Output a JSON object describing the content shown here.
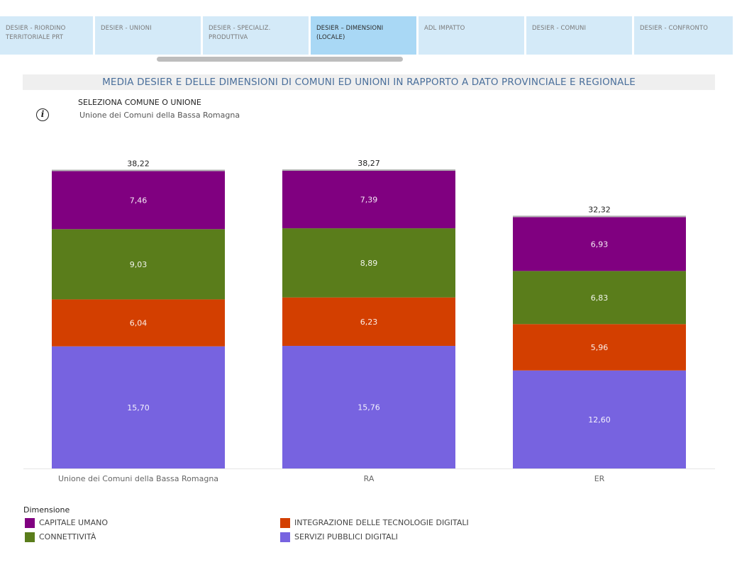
{
  "tabs": [
    {
      "label": "DESIER - RIORDINO TERRITORIALE PRT",
      "active": false
    },
    {
      "label": "DESIER - UNIONI",
      "active": false
    },
    {
      "label": "DESIER - SPECIALIZ. PRODUTTIVA",
      "active": false
    },
    {
      "label": "DESIER – DIMENSIONI (LOCALE)",
      "active": true
    },
    {
      "label": "ADL IMPATTO",
      "active": false
    },
    {
      "label": "DESIER - COMUNI",
      "active": false
    },
    {
      "label": "DESIER - CONFRONTO",
      "active": false
    }
  ],
  "title": "MEDIA DESIER E DELLE DIMENSIONI DI COMUNI ED UNIONI IN RAPPORTO A DATO PROVINCIALE E REGIONALE",
  "selector": {
    "label": "SELEZIONA COMUNE O UNIONE",
    "value": "Unione dei Comuni della Bassa Romagna"
  },
  "info_icon": "info-circle-icon",
  "legend": {
    "title": "Dimensione",
    "items": [
      {
        "label": "CAPITALE UMANO",
        "color": "#800080"
      },
      {
        "label": "INTEGRAZIONE DELLE TECNOLOGIE DIGITALI",
        "color": "#d33f00"
      },
      {
        "label": "CONNETTIVITÀ",
        "color": "#5a7d1b"
      },
      {
        "label": "SERVIZI PUBBLICI DIGITALI",
        "color": "#7763e0"
      }
    ]
  },
  "chart_data": {
    "type": "bar",
    "stacked": true,
    "categories": [
      "Unione dei Comuni della Bassa Romagna",
      "RA",
      "ER"
    ],
    "series": [
      {
        "name": "SERVIZI PUBBLICI DIGITALI",
        "color": "#7763e0",
        "values": [
          15.7,
          15.76,
          12.6
        ],
        "labels": [
          "15,70",
          "15,76",
          "12,60"
        ]
      },
      {
        "name": "INTEGRAZIONE DELLE TECNOLOGIE DIGITALI",
        "color": "#d33f00",
        "values": [
          6.04,
          6.23,
          5.96
        ],
        "labels": [
          "6,04",
          "6,23",
          "5,96"
        ]
      },
      {
        "name": "CONNETTIVITÀ",
        "color": "#5a7d1b",
        "values": [
          9.03,
          8.89,
          6.83
        ],
        "labels": [
          "9,03",
          "8,89",
          "6,83"
        ]
      },
      {
        "name": "CAPITALE UMANO",
        "color": "#800080",
        "values": [
          7.46,
          7.39,
          6.93
        ],
        "labels": [
          "7,46",
          "7,39",
          "6,93"
        ]
      }
    ],
    "totals": [
      38.22,
      38.27,
      32.32
    ],
    "total_labels": [
      "38,22",
      "38,27",
      "32,32"
    ],
    "ylim": [
      0,
      38.27
    ],
    "grid": false,
    "legend_position": "bottom-left"
  }
}
